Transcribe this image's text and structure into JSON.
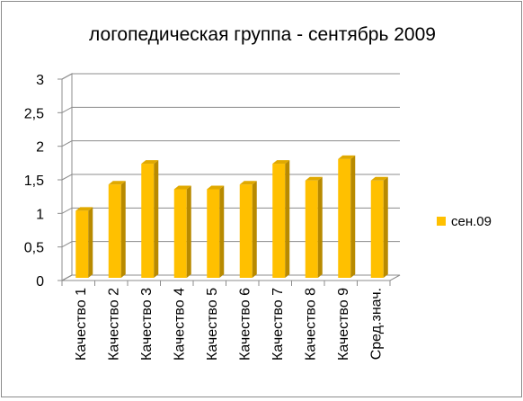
{
  "chart_data": {
    "type": "bar",
    "title": "логопедическая группа - сентябрь 2009",
    "categories": [
      "Качество 1",
      "Качество 2",
      "Качество 3",
      "Качество 4",
      "Качество 5",
      "Качество 6",
      "Качество 7",
      "Качество 8",
      "Качество 9",
      "Сред.знач."
    ],
    "series": [
      {
        "name": "сен.09",
        "values": [
          1.04,
          1.43,
          1.74,
          1.36,
          1.36,
          1.43,
          1.74,
          1.49,
          1.81,
          1.49
        ],
        "color": "#FFC000"
      }
    ],
    "ylim": [
      0,
      3
    ],
    "yticks": [
      "0",
      "0,5",
      "1",
      "1,5",
      "2",
      "2,5",
      "3"
    ],
    "grid": true,
    "legend_position": "right",
    "style": "3d-clustered-column"
  }
}
